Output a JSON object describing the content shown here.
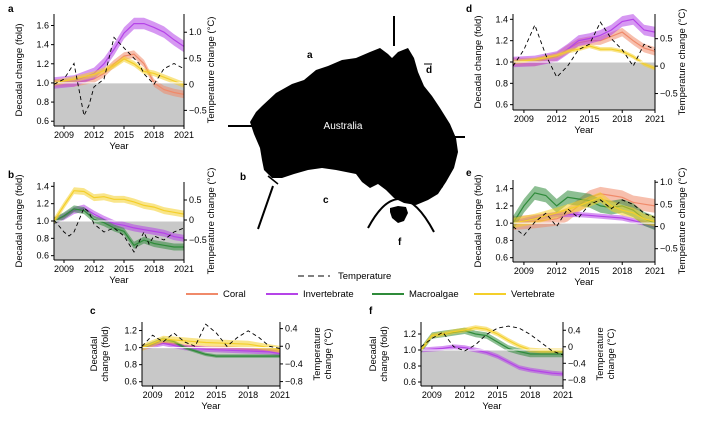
{
  "colors": {
    "coral": "#f08a6a",
    "invertebrate": "#b544e8",
    "macroalgae": "#2f8b3a",
    "vertebrate": "#f4cf2a",
    "baseline_fill": "#c8c8c8",
    "temperature": "#000000"
  },
  "map": {
    "label": "Australia",
    "regions": [
      "a",
      "b",
      "c",
      "d",
      "e",
      "f"
    ]
  },
  "legend": {
    "temperature_label": "Temperature",
    "series_labels": [
      "Coral",
      "Invertebrate",
      "Macroalgae",
      "Vertebrate"
    ]
  },
  "chart_data": [
    {
      "panel": "a",
      "type": "line",
      "xlabel": "Year",
      "ylabel": "Decadal change (fold)",
      "ylabel2": "Temperature change (°C)",
      "x_ticks": [
        "2009",
        "2012",
        "2015",
        "2018",
        "2021"
      ],
      "y_ticks": [
        "0.6",
        "0.8",
        "1.0",
        "1.2",
        "1.4",
        "1.6"
      ],
      "y2_ticks": [
        "−0.5",
        "0",
        "0.5",
        "1.0"
      ],
      "xlim": [
        2008,
        2021
      ],
      "ylim": [
        0.55,
        1.72
      ],
      "y2lim": [
        -0.8,
        1.35
      ],
      "series": [
        {
          "name": "Coral",
          "key": "coral",
          "x": [
            2008,
            2010,
            2012,
            2013,
            2014,
            2015,
            2016,
            2017,
            2018,
            2019,
            2020,
            2021
          ],
          "values": [
            1.0,
            1.0,
            1.04,
            1.1,
            1.2,
            1.28,
            1.3,
            1.2,
            1.0,
            0.93,
            0.9,
            0.88
          ],
          "band": 0.04
        },
        {
          "name": "Invertebrate",
          "key": "invertebrate",
          "x": [
            2008,
            2010,
            2012,
            2013,
            2014,
            2015,
            2016,
            2017,
            2018,
            2019,
            2020,
            2021
          ],
          "values": [
            1.0,
            1.02,
            1.1,
            1.2,
            1.35,
            1.52,
            1.62,
            1.62,
            1.58,
            1.53,
            1.45,
            1.38
          ],
          "band": 0.06
        },
        {
          "name": "Vertebrate",
          "key": "vertebrate",
          "x": [
            2008,
            2010,
            2012,
            2013,
            2014,
            2015,
            2016,
            2017,
            2018,
            2019,
            2020,
            2021
          ],
          "values": [
            1.0,
            1.04,
            1.09,
            1.13,
            1.18,
            1.25,
            1.2,
            1.12,
            1.1,
            1.06,
            1.02,
            0.98
          ],
          "band": 0.03
        }
      ],
      "temperature": {
        "x": [
          2008,
          2009,
          2010,
          2011,
          2011.5,
          2012,
          2013,
          2014,
          2015,
          2016,
          2016.5,
          2017,
          2018,
          2019,
          2020,
          2021
        ],
        "values": [
          0.0,
          0.1,
          0.4,
          -0.6,
          -0.4,
          -0.05,
          0.1,
          0.9,
          0.7,
          0.5,
          0.4,
          0.2,
          0.0,
          0.3,
          0.4,
          0.3
        ]
      }
    },
    {
      "panel": "b",
      "type": "line",
      "xlabel": "Year",
      "ylabel": "Decadal change (fold)",
      "ylabel2": "Temperature change (°C)",
      "x_ticks": [
        "2009",
        "2012",
        "2015",
        "2018",
        "2021"
      ],
      "y_ticks": [
        "0.6",
        "0.8",
        "1.0",
        "1.2",
        "1.4"
      ],
      "y2_ticks": [
        "−0.5",
        "0",
        "0.5"
      ],
      "xlim": [
        2008,
        2021
      ],
      "ylim": [
        0.55,
        1.45
      ],
      "y2lim": [
        -1.0,
        0.95
      ],
      "series": [
        {
          "name": "Invertebrate",
          "key": "invertebrate",
          "x": [
            2008,
            2009,
            2010,
            2011,
            2012,
            2013,
            2014,
            2015,
            2016,
            2017,
            2018,
            2019,
            2020,
            2021
          ],
          "values": [
            1.0,
            1.05,
            1.12,
            1.15,
            1.08,
            1.02,
            0.97,
            0.95,
            0.92,
            0.9,
            0.88,
            0.86,
            0.82,
            0.8
          ],
          "band": 0.04
        },
        {
          "name": "Macroalgae",
          "key": "macroalgae",
          "x": [
            2008,
            2009,
            2010,
            2011,
            2012,
            2013,
            2014,
            2015,
            2016,
            2017,
            2018,
            2019,
            2020,
            2021
          ],
          "values": [
            1.0,
            1.06,
            1.14,
            1.12,
            1.02,
            0.98,
            0.92,
            0.88,
            0.72,
            0.78,
            0.74,
            0.72,
            0.7,
            0.7
          ],
          "band": 0.04
        },
        {
          "name": "Vertebrate",
          "key": "vertebrate",
          "x": [
            2008,
            2009,
            2010,
            2011,
            2012,
            2013,
            2014,
            2015,
            2016,
            2017,
            2018,
            2019,
            2020,
            2021
          ],
          "values": [
            1.0,
            1.18,
            1.35,
            1.34,
            1.27,
            1.28,
            1.25,
            1.25,
            1.22,
            1.18,
            1.16,
            1.12,
            1.1,
            1.08
          ],
          "band": 0.04
        }
      ],
      "temperature": {
        "x": [
          2008,
          2009,
          2009.5,
          2010,
          2011,
          2011.5,
          2012,
          2013,
          2014,
          2015,
          2016,
          2017,
          2017.5,
          2018,
          2019,
          2020,
          2021
        ],
        "values": [
          0.0,
          -0.3,
          -0.4,
          -0.3,
          0.3,
          0.2,
          -0.1,
          -0.3,
          -0.2,
          -0.4,
          -0.8,
          -0.3,
          -0.6,
          -0.4,
          -0.5,
          -0.3,
          -0.2
        ]
      }
    },
    {
      "panel": "c",
      "type": "line",
      "xlabel": "Year",
      "ylabel": "Decadal change (fold)",
      "ylabel2": "Temperature change (°C)",
      "x_ticks": [
        "2009",
        "2012",
        "2015",
        "2018",
        "2021"
      ],
      "y_ticks": [
        "0.6",
        "0.8",
        "1.0",
        "1.2"
      ],
      "y2_ticks": [
        "−0.8",
        "−0.4",
        "0",
        "0.4"
      ],
      "xlim": [
        2008,
        2021
      ],
      "ylim": [
        0.55,
        1.3
      ],
      "y2lim": [
        -0.9,
        0.55
      ],
      "series": [
        {
          "name": "Coral",
          "key": "coral",
          "x": [
            2008,
            2010,
            2012,
            2014,
            2016,
            2018,
            2020,
            2021
          ],
          "values": [
            1.0,
            1.06,
            1.02,
            1.0,
            1.0,
            0.98,
            0.97,
            0.96
          ],
          "band": 0.02
        },
        {
          "name": "Invertebrate",
          "key": "invertebrate",
          "x": [
            2008,
            2010,
            2012,
            2014,
            2016,
            2018,
            2020,
            2021
          ],
          "values": [
            1.0,
            1.05,
            1.0,
            0.98,
            0.97,
            0.96,
            0.95,
            0.93
          ],
          "band": 0.03
        },
        {
          "name": "Macroalgae",
          "key": "macroalgae",
          "x": [
            2008,
            2010,
            2011,
            2012,
            2013,
            2014,
            2015,
            2016,
            2018,
            2020,
            2021
          ],
          "values": [
            1.0,
            1.1,
            1.07,
            1.0,
            0.96,
            0.92,
            0.9,
            0.9,
            0.9,
            0.9,
            0.9
          ],
          "band": 0.02
        },
        {
          "name": "Vertebrate",
          "key": "vertebrate",
          "x": [
            2008,
            2010,
            2012,
            2014,
            2016,
            2018,
            2020,
            2021
          ],
          "values": [
            1.0,
            1.1,
            1.08,
            1.06,
            1.05,
            1.04,
            1.0,
            0.98
          ],
          "band": 0.04
        }
      ],
      "temperature": {
        "x": [
          2008,
          2009,
          2010,
          2011,
          2012,
          2013,
          2014,
          2015,
          2016,
          2017,
          2018,
          2019,
          2020,
          2021
        ],
        "values": [
          0.0,
          0.25,
          0.1,
          0.3,
          0.1,
          0.0,
          0.5,
          0.3,
          0.0,
          0.2,
          0.35,
          0.2,
          0.0,
          -0.05
        ]
      }
    },
    {
      "panel": "d",
      "type": "line",
      "xlabel": "Year",
      "ylabel": "Decadal change (fold)",
      "ylabel2": "Temperature change (°C)",
      "x_ticks": [
        "2009",
        "2012",
        "2015",
        "2018",
        "2021"
      ],
      "y_ticks": [
        "0.6",
        "0.8",
        "1.0",
        "1.2",
        "1.4"
      ],
      "y2_ticks": [
        "−0.5",
        "0",
        "0.5"
      ],
      "xlim": [
        2008,
        2021
      ],
      "ylim": [
        0.55,
        1.45
      ],
      "y2lim": [
        -0.8,
        0.95
      ],
      "series": [
        {
          "name": "Coral",
          "key": "coral",
          "x": [
            2008,
            2010,
            2012,
            2013,
            2014,
            2015,
            2016,
            2017,
            2018,
            2019,
            2020,
            2021
          ],
          "values": [
            1.0,
            1.0,
            1.05,
            1.12,
            1.18,
            1.2,
            1.2,
            1.24,
            1.28,
            1.2,
            1.13,
            1.1
          ],
          "band": 0.04
        },
        {
          "name": "Invertebrate",
          "key": "invertebrate",
          "x": [
            2008,
            2010,
            2012,
            2013,
            2014,
            2015,
            2016,
            2017,
            2018,
            2019,
            2020,
            2021
          ],
          "values": [
            1.0,
            1.01,
            1.05,
            1.12,
            1.2,
            1.22,
            1.25,
            1.3,
            1.38,
            1.4,
            1.3,
            1.28
          ],
          "band": 0.05
        },
        {
          "name": "Vertebrate",
          "key": "vertebrate",
          "x": [
            2008,
            2010,
            2012,
            2013,
            2014,
            2015,
            2016,
            2017,
            2018,
            2019,
            2020,
            2021
          ],
          "values": [
            1.0,
            1.02,
            1.06,
            1.1,
            1.12,
            1.15,
            1.12,
            1.12,
            1.1,
            1.05,
            0.98,
            0.94
          ],
          "band": 0.02
        }
      ],
      "temperature": {
        "x": [
          2008,
          2009,
          2010,
          2011,
          2012,
          2013,
          2014,
          2015,
          2016,
          2017,
          2018,
          2019,
          2020,
          2021
        ],
        "values": [
          0.0,
          0.3,
          0.75,
          0.2,
          -0.2,
          0.0,
          0.3,
          0.4,
          0.8,
          0.5,
          0.3,
          0.0,
          0.4,
          0.3
        ]
      }
    },
    {
      "panel": "e",
      "type": "line",
      "xlabel": "Year",
      "ylabel": "Decadal change (fold)",
      "ylabel2": "Temperature change (°C)",
      "x_ticks": [
        "2009",
        "2012",
        "2015",
        "2018",
        "2021"
      ],
      "y_ticks": [
        "0.6",
        "0.8",
        "1.0",
        "1.2",
        "1.4"
      ],
      "y2_ticks": [
        "−0.5",
        "0",
        "0.5",
        "1.0"
      ],
      "xlim": [
        2008,
        2021
      ],
      "ylim": [
        0.55,
        1.5
      ],
      "y2lim": [
        -0.8,
        1.05
      ],
      "series": [
        {
          "name": "Coral",
          "key": "coral",
          "x": [
            2008,
            2010,
            2012,
            2013,
            2014,
            2015,
            2016,
            2017,
            2018,
            2019,
            2020,
            2021
          ],
          "values": [
            1.0,
            1.02,
            1.05,
            1.1,
            1.2,
            1.3,
            1.34,
            1.32,
            1.3,
            1.24,
            1.22,
            1.2
          ],
          "band": 0.08
        },
        {
          "name": "Invertebrate",
          "key": "invertebrate",
          "x": [
            2008,
            2010,
            2012,
            2014,
            2016,
            2018,
            2020,
            2021
          ],
          "values": [
            1.0,
            1.06,
            1.1,
            1.1,
            1.08,
            1.06,
            1.0,
            0.96
          ],
          "band": 0.03
        },
        {
          "name": "Macroalgae",
          "key": "macroalgae",
          "x": [
            2008,
            2009,
            2010,
            2011,
            2012,
            2013,
            2014,
            2015,
            2016,
            2017,
            2018,
            2019,
            2020,
            2021
          ],
          "values": [
            1.0,
            1.2,
            1.35,
            1.32,
            1.2,
            1.3,
            1.28,
            1.26,
            1.2,
            1.18,
            1.2,
            1.15,
            1.05,
            1.0
          ],
          "band": 0.08
        },
        {
          "name": "Vertebrate",
          "key": "vertebrate",
          "x": [
            2008,
            2010,
            2012,
            2014,
            2015,
            2016,
            2017,
            2018,
            2019,
            2020,
            2021
          ],
          "values": [
            1.0,
            1.05,
            1.12,
            1.2,
            1.25,
            1.3,
            1.2,
            1.15,
            1.12,
            1.05,
            1.02
          ],
          "band": 0.06
        }
      ],
      "temperature": {
        "x": [
          2008,
          2009,
          2010,
          2011,
          2012,
          2013,
          2014,
          2015,
          2016,
          2017,
          2018,
          2019,
          2020,
          2021
        ],
        "values": [
          0.0,
          -0.2,
          0.1,
          0.3,
          0.0,
          0.4,
          0.2,
          0.5,
          0.6,
          0.4,
          0.6,
          0.5,
          0.3,
          0.2
        ]
      }
    },
    {
      "panel": "f",
      "type": "line",
      "xlabel": "Year",
      "ylabel": "Decadal change (fold)",
      "ylabel2": "Temperature change (°C)",
      "x_ticks": [
        "2009",
        "2012",
        "2015",
        "2018",
        "2021"
      ],
      "y_ticks": [
        "0.6",
        "0.8",
        "1.0",
        "1.2"
      ],
      "y2_ticks": [
        "−0.8",
        "−0.4",
        "0",
        "0.4"
      ],
      "xlim": [
        2008,
        2021
      ],
      "ylim": [
        0.55,
        1.35
      ],
      "y2lim": [
        -0.95,
        0.6
      ],
      "series": [
        {
          "name": "Invertebrate",
          "key": "invertebrate",
          "x": [
            2008,
            2010,
            2011,
            2012,
            2013,
            2014,
            2015,
            2016,
            2017,
            2018,
            2019,
            2020,
            2021
          ],
          "values": [
            1.0,
            1.02,
            1.04,
            1.03,
            1.0,
            0.97,
            0.92,
            0.85,
            0.78,
            0.75,
            0.73,
            0.71,
            0.7
          ],
          "band": 0.03
        },
        {
          "name": "Macroalgae",
          "key": "macroalgae",
          "x": [
            2008,
            2009,
            2010,
            2011,
            2012,
            2013,
            2014,
            2015,
            2016,
            2017,
            2018,
            2019,
            2020,
            2021
          ],
          "values": [
            1.0,
            1.18,
            1.2,
            1.22,
            1.24,
            1.2,
            1.18,
            1.1,
            1.02,
            0.98,
            0.95,
            0.95,
            0.95,
            0.95
          ],
          "band": 0.04
        },
        {
          "name": "Vertebrate",
          "key": "vertebrate",
          "x": [
            2008,
            2009,
            2010,
            2011,
            2012,
            2013,
            2014,
            2015,
            2016,
            2017,
            2018,
            2019,
            2020,
            2021
          ],
          "values": [
            1.0,
            1.18,
            1.2,
            1.23,
            1.25,
            1.28,
            1.26,
            1.2,
            1.12,
            1.05,
            1.0,
            0.99,
            0.99,
            0.99
          ],
          "band": 0.03
        }
      ],
      "temperature": {
        "x": [
          2008,
          2009,
          2010,
          2011,
          2012,
          2013,
          2014,
          2015,
          2016,
          2017,
          2018,
          2019,
          2020,
          2021
        ],
        "values": [
          0.0,
          0.2,
          0.35,
          0.0,
          -0.1,
          0.05,
          0.3,
          0.45,
          0.5,
          0.45,
          0.3,
          0.1,
          -0.1,
          -0.2
        ]
      }
    }
  ]
}
